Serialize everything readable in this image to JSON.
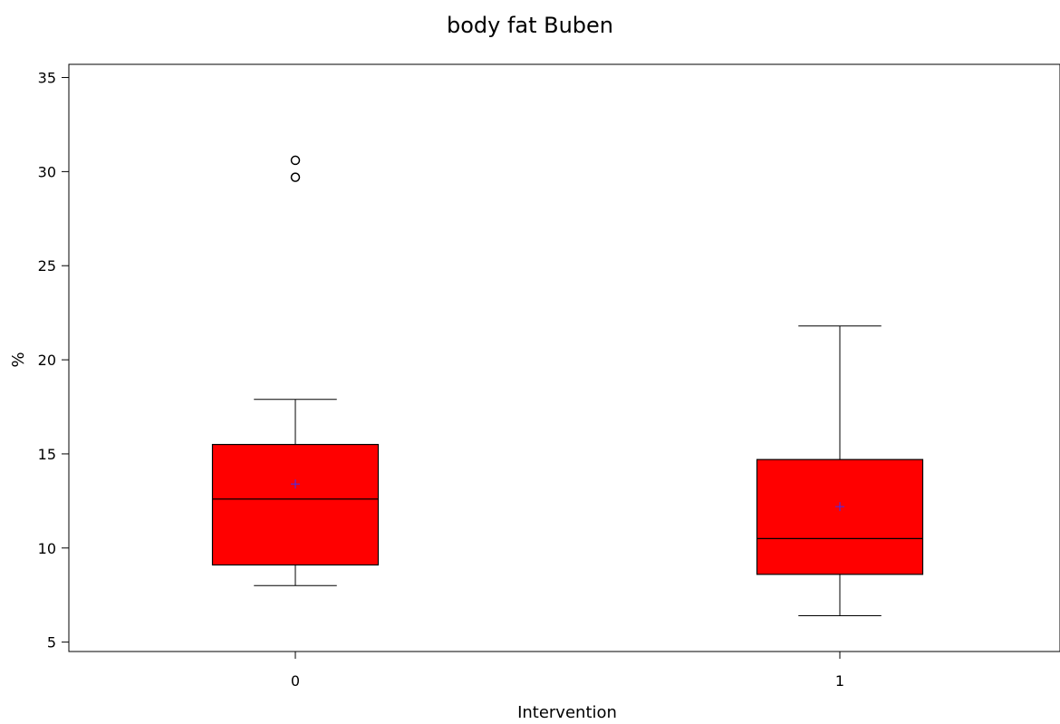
{
  "chart_data": {
    "type": "box",
    "title": "body fat Buben",
    "xlabel": "Intervention",
    "ylabel": "%",
    "ylim": [
      4.5,
      35.7
    ],
    "yticks": [
      5,
      10,
      15,
      20,
      25,
      30,
      35
    ],
    "categories": [
      "0",
      "1"
    ],
    "boxes": [
      {
        "category": "0",
        "whisker_low": 8.0,
        "q1": 9.1,
        "median": 12.6,
        "q3": 15.5,
        "whisker_high": 17.9,
        "mean": 13.4,
        "outliers": [
          29.7,
          30.6
        ]
      },
      {
        "category": "1",
        "whisker_low": 6.4,
        "q1": 8.6,
        "median": 10.5,
        "q3": 14.7,
        "whisker_high": 21.8,
        "mean": 12.2,
        "outliers": []
      }
    ],
    "box_color": "#ff0000",
    "mean_marker_color": "#3333ff",
    "grid": false,
    "legend": "none"
  }
}
